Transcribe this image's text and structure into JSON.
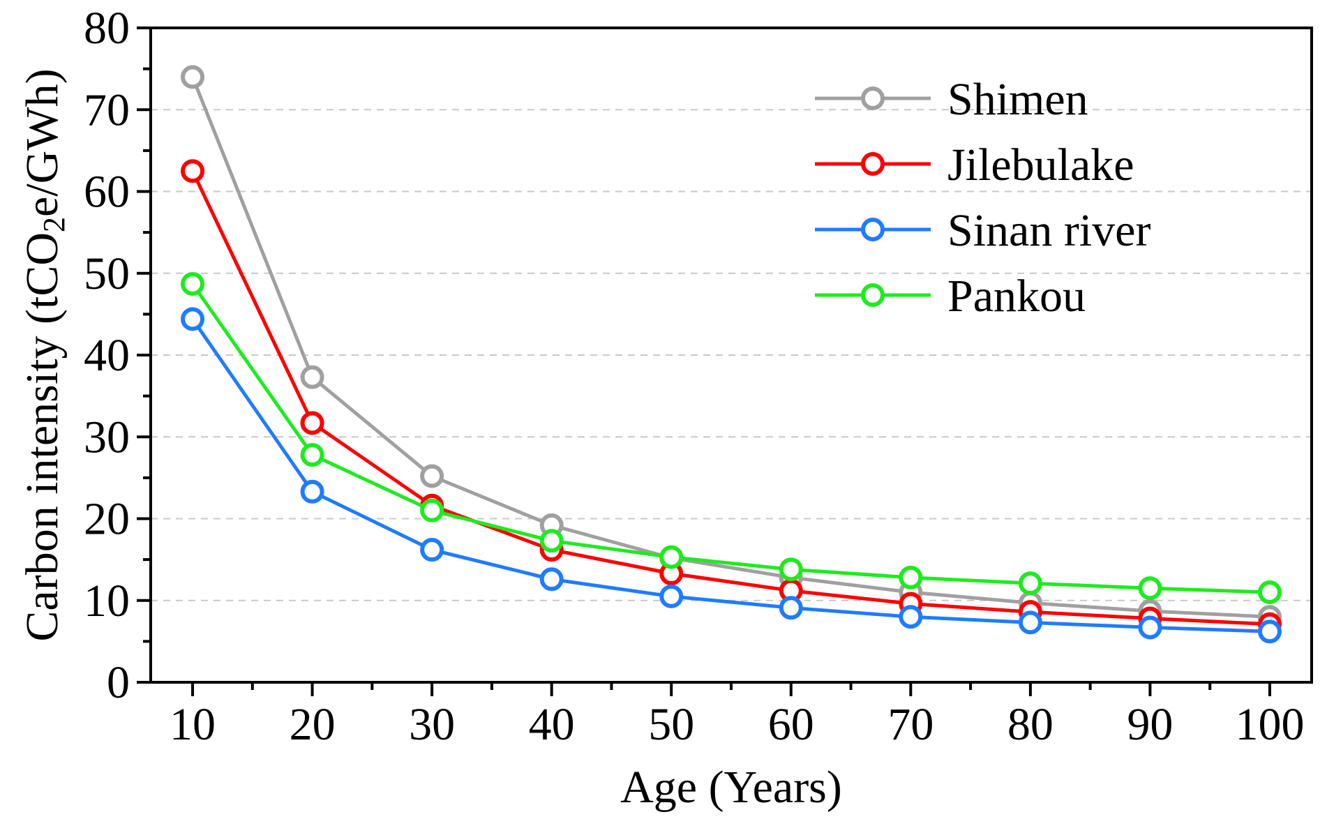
{
  "chart_data": {
    "type": "line",
    "title": "",
    "xlabel": "Age (Years)",
    "ylabel": {
      "prefix": "Carbon intensity (tCO",
      "subscript": "2",
      "suffix": "e/GWh)"
    },
    "x": [
      10,
      20,
      30,
      40,
      50,
      60,
      70,
      80,
      90,
      100
    ],
    "xlim": [
      6.5,
      103.5
    ],
    "ylim": [
      0,
      80
    ],
    "yticks": [
      0,
      10,
      20,
      30,
      40,
      50,
      60,
      70,
      80
    ],
    "ytick_labels": [
      "0",
      "10",
      "20",
      "30",
      "40",
      "50",
      "60",
      "70",
      "80"
    ],
    "xtick_labels": [
      "10",
      "20",
      "30",
      "40",
      "50",
      "60",
      "70",
      "80",
      "90",
      "100"
    ],
    "grid": "horizontal dashed",
    "legend_position": "top-right",
    "series": [
      {
        "name": "Shimen",
        "color": "#a0a0a0",
        "values": [
          74.0,
          37.3,
          25.2,
          19.2,
          15.2,
          12.8,
          11.0,
          9.7,
          8.7,
          8.0
        ]
      },
      {
        "name": "Jilebulake",
        "color": "#ff0000",
        "values": [
          62.5,
          31.7,
          21.6,
          16.2,
          13.3,
          11.2,
          9.6,
          8.6,
          7.8,
          7.1
        ]
      },
      {
        "name": "Sinan river",
        "color": "#1e7cff",
        "values": [
          44.4,
          23.3,
          16.2,
          12.6,
          10.5,
          9.1,
          8.0,
          7.3,
          6.7,
          6.2
        ]
      },
      {
        "name": "Pankou",
        "color": "#1eeb1e",
        "values": [
          48.7,
          27.8,
          21.0,
          17.3,
          15.3,
          13.8,
          12.8,
          12.1,
          11.5,
          11.0
        ]
      }
    ]
  }
}
